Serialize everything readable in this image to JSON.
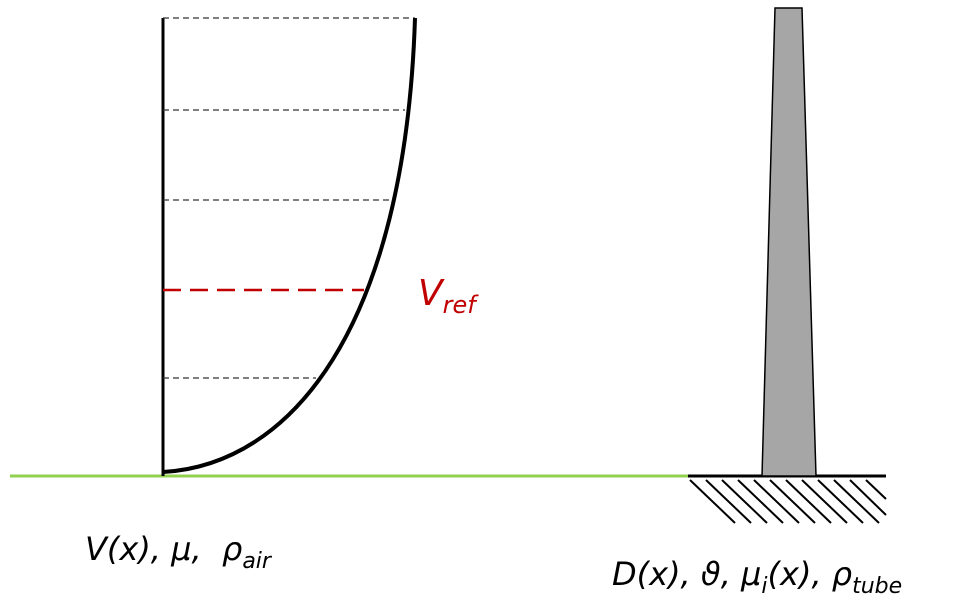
{
  "wind_label": [
    {
      "text": "V(x), μ,  ρ"
    },
    {
      "sub": "air"
    }
  ],
  "vref_label": [
    {
      "text": "V"
    },
    {
      "sub": "ref"
    }
  ],
  "tower_label": [
    {
      "text": "D(x), ϑ, μ"
    },
    {
      "sub": "i"
    },
    {
      "text": "(x), ρ"
    },
    {
      "sub": "tube"
    }
  ]
}
